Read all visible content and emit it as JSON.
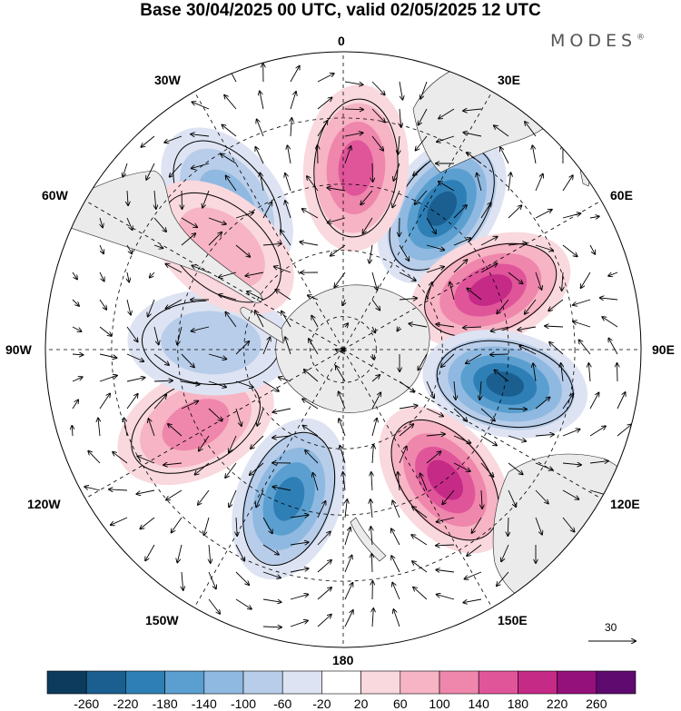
{
  "title": "Base 30/04/2025 00 UTC, valid 02/05/2025 12 UTC",
  "brand": "MODES",
  "brand_mark": "®",
  "longitude_labels": {
    "lon_0": "0",
    "lon_30e": "30E",
    "lon_60e": "60E",
    "lon_90e": "90E",
    "lon_120e": "120E",
    "lon_150e": "150E",
    "lon_180": "180",
    "lon_150w": "150W",
    "lon_120w": "120W",
    "lon_90w": "90W",
    "lon_60w": "60W",
    "lon_30w": "30W"
  },
  "reference_vector": {
    "label": "30"
  },
  "colorbar": {
    "ticks": [
      "-260",
      "-220",
      "-180",
      "-140",
      "-100",
      "-60",
      "-20",
      "20",
      "60",
      "100",
      "140",
      "180",
      "220",
      "260"
    ],
    "colors": [
      "#0d3b5e",
      "#1a5f8f",
      "#2e7fb6",
      "#5a9fcf",
      "#8fb9e0",
      "#b8cde9",
      "#dde3f2",
      "#ffffff",
      "#f9d8de",
      "#f6b4c4",
      "#ef86ac",
      "#e0559a",
      "#c52a86",
      "#94107a",
      "#5e0a6e"
    ]
  },
  "anomaly_centers": [
    {
      "lat": -38,
      "lon": 35,
      "value": -220
    },
    {
      "lat": -42,
      "lon": 68,
      "value": 200
    },
    {
      "lat": -40,
      "lon": 102,
      "value": -250
    },
    {
      "lat": -40,
      "lon": 142,
      "value": 210
    },
    {
      "lat": -42,
      "lon": -160,
      "value": -180
    },
    {
      "lat": -40,
      "lon": -117,
      "value": 130
    },
    {
      "lat": -50,
      "lon": -87,
      "value": -90
    },
    {
      "lat": -33,
      "lon": -38,
      "value": -100
    },
    {
      "lat": -35,
      "lon": 4,
      "value": 150
    },
    {
      "lat": -42,
      "lon": -50,
      "value": 70
    }
  ]
}
